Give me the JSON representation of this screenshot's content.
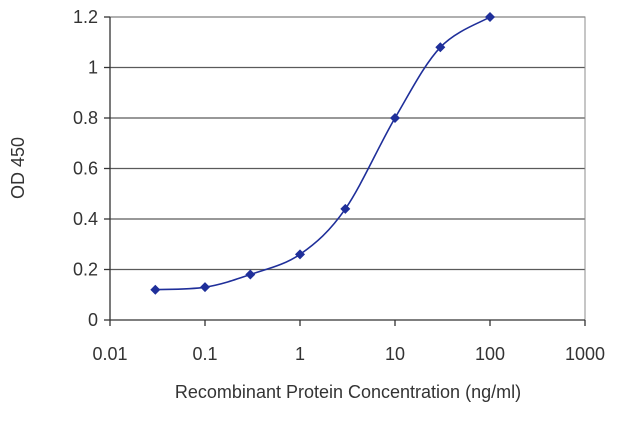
{
  "chart_data": {
    "type": "line",
    "xlabel": "Recombinant Protein Concentration (ng/ml)",
    "ylabel": "OD 450",
    "x_scale": "log",
    "xlim": [
      0.01,
      1000
    ],
    "ylim": [
      0,
      1.2
    ],
    "x_ticks": [
      "0.01",
      "0.1",
      "1",
      "10",
      "100",
      "1000"
    ],
    "y_ticks": [
      "0",
      "0.2",
      "0.4",
      "0.6",
      "0.8",
      "1",
      "1.2"
    ],
    "grid": "horizontal",
    "legend": "none",
    "series": [
      {
        "color": "#1f2f9a",
        "x": [
          0.03,
          0.1,
          0.3,
          1,
          3,
          10,
          30,
          100
        ],
        "y": [
          0.12,
          0.13,
          0.18,
          0.26,
          0.44,
          0.8,
          1.08,
          1.2
        ]
      }
    ]
  }
}
